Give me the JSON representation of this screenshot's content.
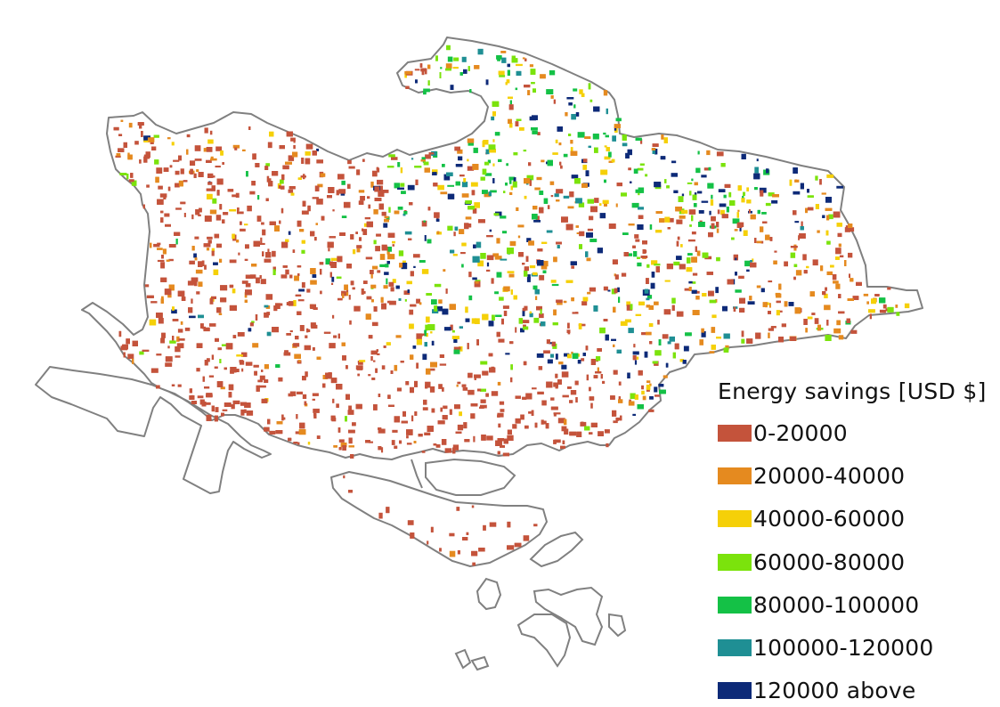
{
  "legend": {
    "title": "Energy savings [USD $]",
    "items": [
      {
        "label": "0-20000",
        "color": "#c4533b"
      },
      {
        "label": "20000-40000",
        "color": "#e58a1f"
      },
      {
        "label": "40000-60000",
        "color": "#f5d008"
      },
      {
        "label": "60000-80000",
        "color": "#7be30c"
      },
      {
        "label": "80000-100000",
        "color": "#14c146"
      },
      {
        "label": "100000-120000",
        "color": "#1f8f94"
      },
      {
        "label": "120000 above",
        "color": "#0d2a78"
      }
    ]
  },
  "map": {
    "outline_color": "#808080",
    "background": "#ffffff"
  }
}
